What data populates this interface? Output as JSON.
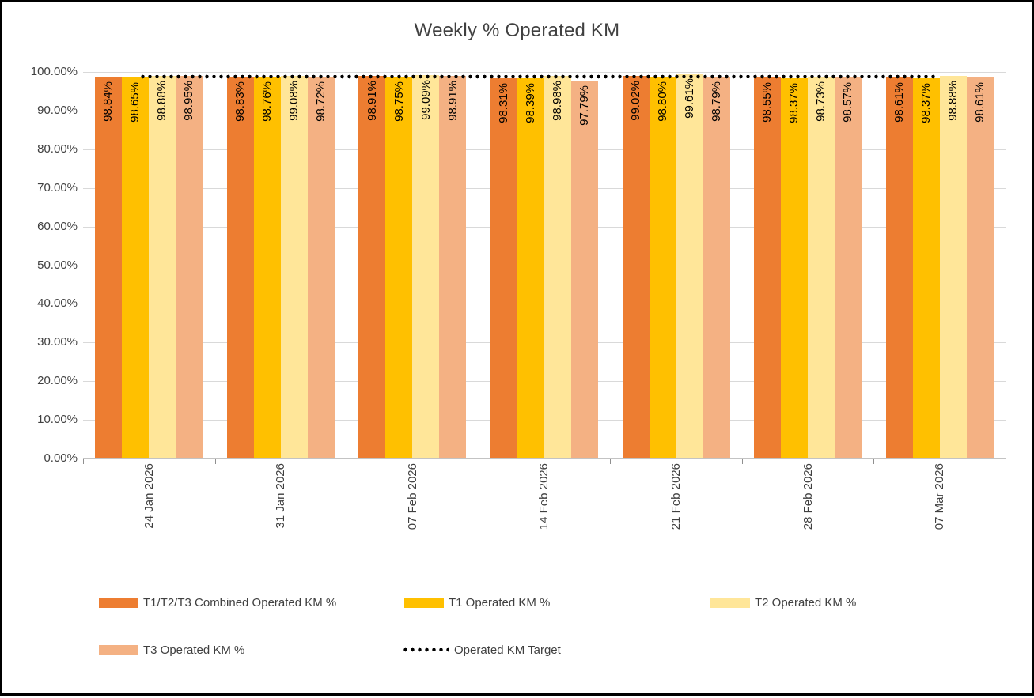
{
  "title": "Weekly % Operated KM",
  "colors": {
    "combined": "#ED7D31",
    "t1": "#FFC000",
    "t2": "#FFE699",
    "t3": "#F4B183",
    "target_line": "#000000",
    "gridline": "#D9D9D9",
    "axis_text": "#404040",
    "data_label_text": "#000000"
  },
  "chart_data": {
    "type": "bar",
    "title": "Weekly % Operated KM",
    "categories": [
      "24 Jan 2026",
      "31 Jan 2026",
      "07 Feb 2026",
      "14 Feb 2026",
      "21 Feb 2026",
      "28 Feb 2026",
      "07 Mar 2026"
    ],
    "series": [
      {
        "key": "combined",
        "name": "T1/T2/T3 Combined Operated KM %",
        "color": "#ED7D31",
        "values": [
          98.84,
          98.83,
          98.91,
          98.31,
          99.02,
          98.55,
          98.61
        ],
        "labels": [
          "98.84%",
          "98.83%",
          "98.91%",
          "98.31%",
          "99.02%",
          "98.55%",
          "98.61%"
        ]
      },
      {
        "key": "t1",
        "name": "T1 Operated KM %",
        "color": "#FFC000",
        "values": [
          98.65,
          98.76,
          98.75,
          98.39,
          98.8,
          98.37,
          98.37
        ],
        "labels": [
          "98.65%",
          "98.76%",
          "98.75%",
          "98.39%",
          "98.80%",
          "98.37%",
          "98.37%"
        ]
      },
      {
        "key": "t2",
        "name": "T2 Operated KM %",
        "color": "#FFE699",
        "values": [
          98.88,
          99.08,
          99.09,
          98.98,
          99.61,
          98.73,
          98.88
        ],
        "labels": [
          "98.88%",
          "99.08%",
          "99.09%",
          "98.98%",
          "99.61%",
          "98.73%",
          "98.88%"
        ]
      },
      {
        "key": "t3",
        "name": "T3 Operated KM %",
        "color": "#F4B183",
        "values": [
          98.95,
          98.72,
          98.91,
          97.79,
          98.79,
          98.57,
          98.61
        ],
        "labels": [
          "98.95%",
          "98.72%",
          "98.91%",
          "97.79%",
          "98.79%",
          "98.57%",
          "98.61%"
        ]
      }
    ],
    "target_line": {
      "key": "target",
      "name": "Operated KM Target",
      "value_estimate": 98.8,
      "color": "#000000",
      "style": "dotted"
    },
    "ylim": [
      0,
      100
    ],
    "ytick_step": 10,
    "ytick_labels": [
      "100.00%",
      "90.00%",
      "80.00%",
      "70.00%",
      "60.00%",
      "50.00%",
      "40.00%",
      "30.00%",
      "20.00%",
      "10.00%",
      "0.00%"
    ],
    "grid": true,
    "legend_position": "bottom",
    "xlabel": "",
    "ylabel": ""
  }
}
